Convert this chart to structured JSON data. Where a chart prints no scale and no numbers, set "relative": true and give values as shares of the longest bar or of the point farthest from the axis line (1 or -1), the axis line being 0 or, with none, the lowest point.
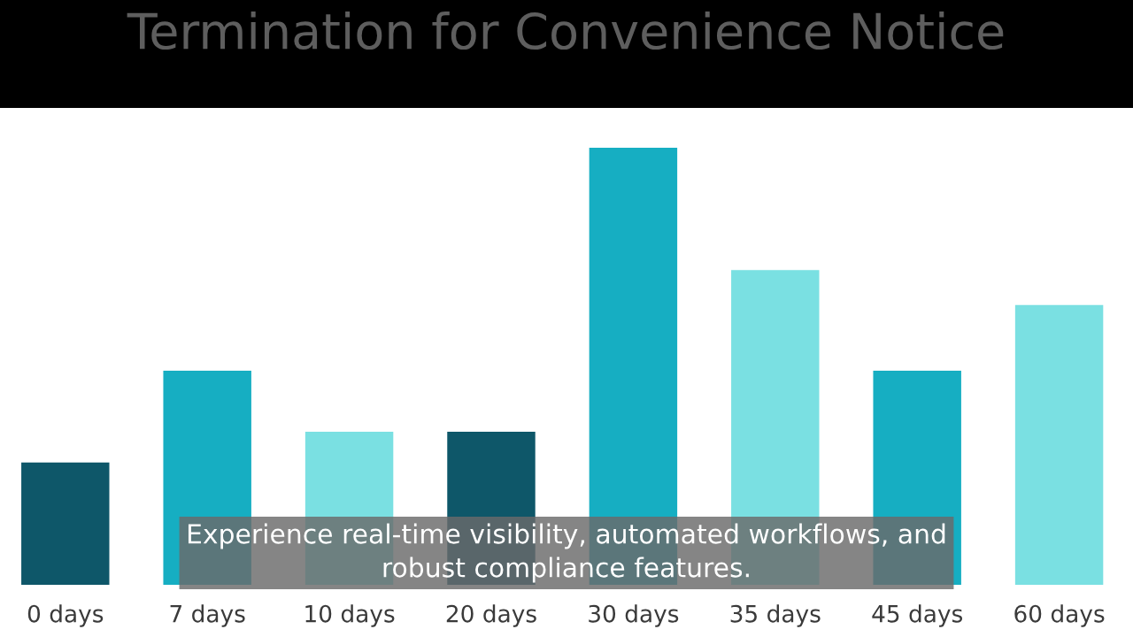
{
  "chart_data": {
    "type": "bar",
    "title": "Termination for Convenience Notice",
    "categories": [
      "0 days",
      "7 days",
      "10 days",
      "20 days",
      "30 days",
      "35 days",
      "45 days",
      "60 days"
    ],
    "values": [
      0.28,
      0.49,
      0.35,
      0.35,
      1,
      0.72,
      0.49,
      0.64
    ],
    "colors": [
      "#0e5769",
      "#16aec2",
      "#7ae0e2",
      "#0e5769",
      "#16aec2",
      "#7ae0e2",
      "#16aec2",
      "#7ae0e2"
    ],
    "relative": true,
    "annotations": [
      "Experience real-time visibility, automated workflows, and\nrobust compliance features."
    ]
  }
}
